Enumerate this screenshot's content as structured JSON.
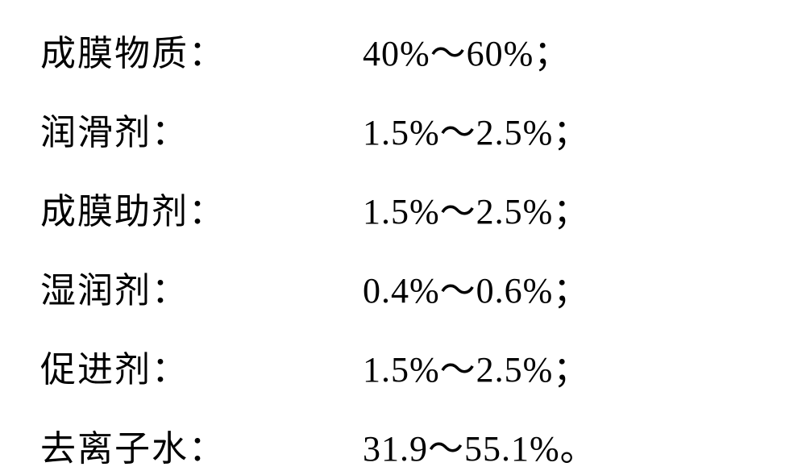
{
  "composition": {
    "rows": [
      {
        "label": "成膜物质：",
        "value": "40%～60%；"
      },
      {
        "label": "润滑剂：",
        "value": "1.5%～2.5%；"
      },
      {
        "label": "成膜助剂：",
        "value": "1.5%～2.5%；"
      },
      {
        "label": "湿润剂：",
        "value": "0.4%～0.6%；"
      },
      {
        "label": "促进剂：",
        "value": "1.5%～2.5%；"
      },
      {
        "label": "去离子水：",
        "value": "31.9～55.1%。"
      }
    ],
    "text_color": "#000000",
    "background_color": "#ffffff",
    "font_size": 44,
    "font_family": "SimSun"
  }
}
